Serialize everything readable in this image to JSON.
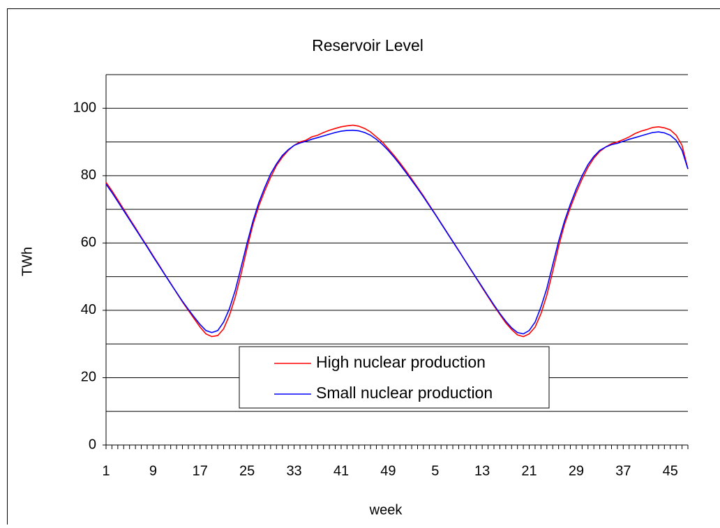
{
  "chart_data": {
    "type": "line",
    "title": "Reservoir Level",
    "x_label": "week",
    "y_label": "TWh",
    "categories": [
      1,
      null,
      null,
      null,
      null,
      null,
      null,
      null,
      9,
      null,
      null,
      null,
      null,
      null,
      null,
      null,
      17,
      null,
      null,
      null,
      null,
      null,
      null,
      null,
      25,
      null,
      null,
      null,
      null,
      null,
      null,
      null,
      33,
      null,
      null,
      null,
      null,
      null,
      null,
      null,
      41,
      null,
      null,
      null,
      null,
      null,
      null,
      null,
      49,
      null,
      null,
      null,
      null,
      null,
      null,
      null,
      5,
      null,
      null,
      null,
      null,
      null,
      null,
      null,
      13,
      null,
      null,
      null,
      null,
      null,
      null,
      null,
      21,
      null,
      null,
      null,
      null,
      null,
      null,
      null,
      29,
      null,
      null,
      null,
      null,
      null,
      null,
      null,
      37,
      null,
      null,
      null,
      null,
      null,
      null,
      null,
      45,
      null,
      null,
      null
    ],
    "series": [
      {
        "name": "High nuclear production",
        "color": "#ff0000",
        "values": [
          78,
          75.5,
          72.8,
          70,
          67.2,
          64.5,
          61.7,
          59,
          56.2,
          53.5,
          50.7,
          48,
          45.2,
          42.5,
          40,
          37.5,
          35,
          33,
          32.2,
          32.5,
          34.5,
          38.5,
          44,
          51,
          58.5,
          65.5,
          71,
          75.5,
          79.5,
          83,
          85.5,
          87.5,
          89,
          90,
          90.5,
          91.5,
          92,
          92.8,
          93.5,
          94,
          94.5,
          94.8,
          95,
          94.7,
          94,
          93,
          91.5,
          90,
          88,
          86,
          83.8,
          81.5,
          79,
          76.5,
          74,
          71.3,
          68.6,
          65.9,
          63.2,
          60.5,
          57.8,
          55,
          52.2,
          49.5,
          46.7,
          44,
          41.3,
          38.8,
          36.3,
          34.3,
          32.7,
          32.2,
          33,
          35,
          39,
          44.5,
          51.5,
          59,
          65.5,
          70.5,
          75,
          79,
          82.5,
          85.2,
          87.2,
          88.5,
          89.5,
          90,
          90.7,
          91.5,
          92.5,
          93.2,
          93.7,
          94.3,
          94.5,
          94.2,
          93.6,
          92,
          89,
          82
        ]
      },
      {
        "name": "Small nuclear production",
        "color": "#0000ff",
        "values": [
          77.5,
          75,
          72.3,
          69.6,
          66.9,
          64.2,
          61.5,
          58.8,
          56,
          53.3,
          50.6,
          47.9,
          45.3,
          42.7,
          40.3,
          38,
          35.8,
          34,
          33.4,
          34,
          36.5,
          40.5,
          46,
          53,
          60,
          66.5,
          72,
          76.5,
          80.5,
          83.5,
          86,
          87.7,
          89,
          89.7,
          90.2,
          90.8,
          91.3,
          91.8,
          92.3,
          92.8,
          93.2,
          93.4,
          93.5,
          93.3,
          92.8,
          92,
          90.8,
          89.3,
          87.5,
          85.5,
          83.3,
          81,
          78.6,
          76.2,
          73.7,
          71.1,
          68.5,
          65.8,
          63.1,
          60.4,
          57.7,
          55,
          52.3,
          49.6,
          46.9,
          44.2,
          41.6,
          39.1,
          36.8,
          34.8,
          33.4,
          33,
          34,
          36.5,
          41,
          46.5,
          53.5,
          60.5,
          66.5,
          71.5,
          76,
          80,
          83.3,
          85.7,
          87.5,
          88.5,
          89.2,
          89.6,
          90.2,
          90.8,
          91.3,
          91.8,
          92.3,
          92.8,
          93,
          92.7,
          92,
          90.5,
          87.5,
          82
        ]
      }
    ],
    "ylim": [
      0,
      110
    ],
    "yticks": [
      0,
      20,
      40,
      60,
      80,
      100
    ],
    "ygrid_lines": [
      10,
      30,
      50,
      70,
      90,
      110
    ],
    "grid": true,
    "legend": "bottom"
  }
}
